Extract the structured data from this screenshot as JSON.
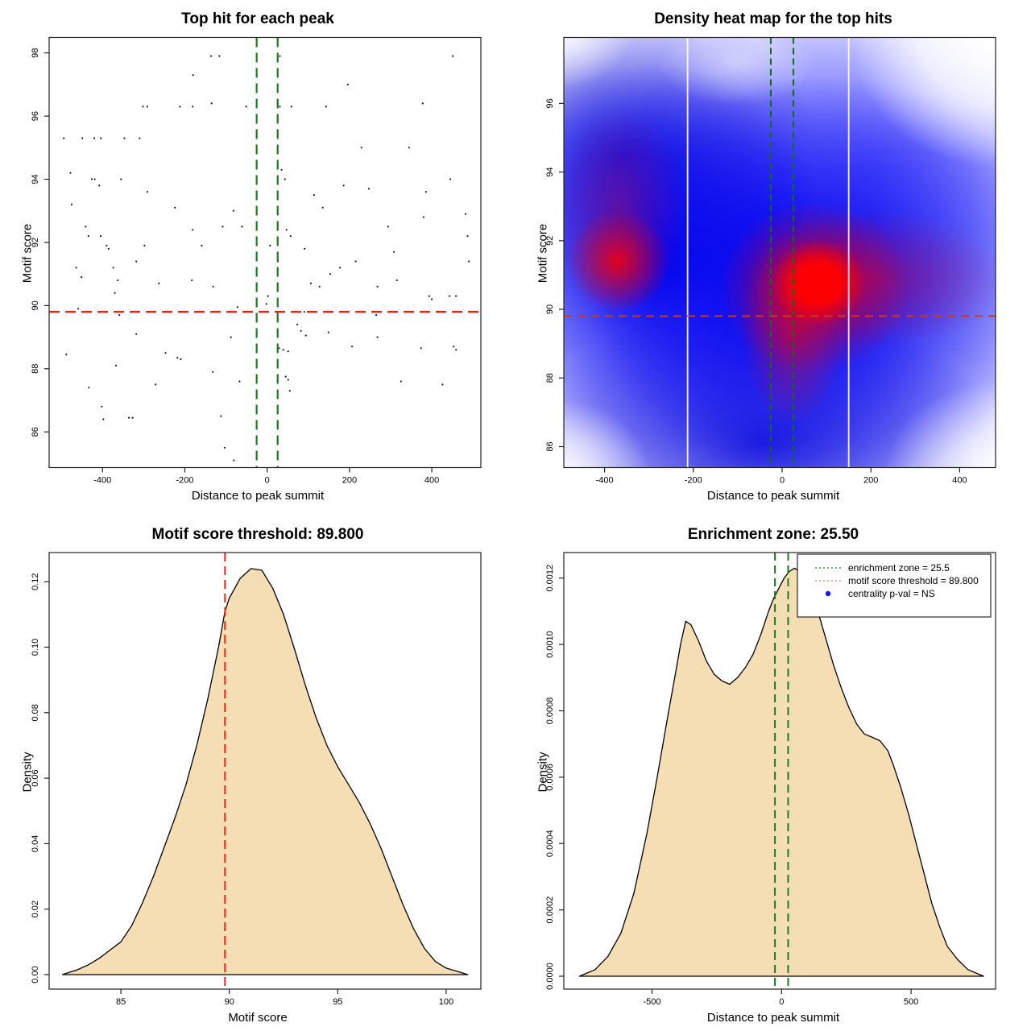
{
  "page": {
    "background": "#ffffff"
  },
  "colors": {
    "threshold_red": "#e8241a",
    "heat_threshold_red": "#cf3518",
    "enrichment_green": "#1b7a1b",
    "heat_green": "#0f6e12",
    "density_fill": "#f5deb3",
    "curve_stroke": "#000000",
    "point_color": "#1a1a1a",
    "heat_low": "#0000ff",
    "heat_high": "#ff0000",
    "white_line": "#ffffff",
    "legend_green": "#3c9b3c",
    "legend_red": "#ff8878",
    "legend_blue": "#1414ff"
  },
  "chart_data": [
    {
      "type": "scatter",
      "panel": "top-left",
      "title": "Top hit for each peak",
      "xlabel": "Distance to peak summit",
      "ylabel": "Motif score",
      "xlim": [
        -529.7,
        519.2
      ],
      "ylim": [
        84.87,
        98.49
      ],
      "xticks": [
        -400,
        -200,
        0,
        200,
        400
      ],
      "xtick_labels": [
        "-400",
        "-200",
        "0",
        "200",
        "400"
      ],
      "yticks": [
        86,
        88,
        90,
        92,
        94,
        96,
        98
      ],
      "ytick_labels": [
        "86",
        "88",
        "90",
        "92",
        "94",
        "96",
        "98"
      ],
      "grid": false,
      "hlines": [
        {
          "name": "motif-score-threshold-line",
          "y": 89.8,
          "color": "#e8241a",
          "dash": "13 7",
          "width": 2.4
        }
      ],
      "vlines": [
        {
          "name": "enrichment-zone-left-line",
          "x": -25.5,
          "color": "#1b7a1b",
          "dash": "12 7",
          "width": 2.2
        },
        {
          "name": "enrichment-zone-right-line",
          "x": 25.5,
          "color": "#1b7a1b",
          "dash": "12 7",
          "width": 2.2
        }
      ],
      "point_color": "#1a1a1a",
      "points": [
        [
          -136,
          97.9
        ],
        [
          -116,
          97.9
        ],
        [
          31,
          97.9
        ],
        [
          451,
          97.9
        ],
        [
          -180,
          97.3
        ],
        [
          196,
          97.0
        ],
        [
          -302,
          96.3
        ],
        [
          -291,
          96.3
        ],
        [
          -212,
          96.3
        ],
        [
          -181,
          96.3
        ],
        [
          -135,
          96.4
        ],
        [
          -51,
          96.3
        ],
        [
          31,
          96.3
        ],
        [
          59,
          96.3
        ],
        [
          143,
          96.3
        ],
        [
          378,
          96.4
        ],
        [
          -494,
          95.3
        ],
        [
          -449,
          95.3
        ],
        [
          -420,
          95.3
        ],
        [
          -404,
          95.3
        ],
        [
          -347,
          95.3
        ],
        [
          -310,
          95.3
        ],
        [
          229,
          95.0
        ],
        [
          345,
          95.0
        ],
        [
          -478,
          94.2
        ],
        [
          35,
          94.3
        ],
        [
          -426,
          94.0
        ],
        [
          -419,
          94.0
        ],
        [
          -355,
          94.0
        ],
        [
          43,
          94.0
        ],
        [
          445,
          94.0
        ],
        [
          -408,
          93.8
        ],
        [
          186,
          93.8
        ],
        [
          247,
          93.7
        ],
        [
          -291,
          93.6
        ],
        [
          114,
          93.5
        ],
        [
          386,
          93.6
        ],
        [
          -475,
          93.2
        ],
        [
          -224,
          93.1
        ],
        [
          135,
          93.1
        ],
        [
          -82,
          93.0
        ],
        [
          482,
          92.9
        ],
        [
          -441,
          92.5
        ],
        [
          -181,
          92.4
        ],
        [
          -108,
          92.5
        ],
        [
          -61,
          92.5
        ],
        [
          47,
          92.4
        ],
        [
          294,
          92.5
        ],
        [
          380,
          92.8
        ],
        [
          -434,
          92.2
        ],
        [
          -404,
          92.2
        ],
        [
          57,
          92.2
        ],
        [
          487,
          92.2
        ],
        [
          -390,
          91.9
        ],
        [
          -385,
          91.8
        ],
        [
          -298,
          91.9
        ],
        [
          -159,
          91.9
        ],
        [
          7,
          91.9
        ],
        [
          91,
          91.8
        ],
        [
          308,
          91.7
        ],
        [
          -318,
          91.4
        ],
        [
          26,
          91.4
        ],
        [
          215,
          91.4
        ],
        [
          490,
          91.4
        ],
        [
          -464,
          91.2
        ],
        [
          -374,
          91.2
        ],
        [
          177,
          91.2
        ],
        [
          -451,
          90.9
        ],
        [
          -363,
          90.8
        ],
        [
          -263,
          90.7
        ],
        [
          -183,
          90.8
        ],
        [
          -131,
          90.6
        ],
        [
          268,
          90.6
        ],
        [
          315,
          90.8
        ],
        [
          106,
          90.7
        ],
        [
          127,
          90.6
        ],
        [
          153,
          91.0
        ],
        [
          -370,
          90.4
        ],
        [
          2,
          90.3
        ],
        [
          394,
          90.3
        ],
        [
          400,
          90.2
        ],
        [
          459,
          90.3
        ],
        [
          443,
          90.3
        ],
        [
          -2,
          90.05
        ],
        [
          -72,
          89.95
        ],
        [
          -459,
          89.9
        ],
        [
          -359,
          89.7
        ],
        [
          90,
          89.8
        ],
        [
          265,
          89.7
        ],
        [
          388,
          89.8
        ],
        [
          -318,
          89.1
        ],
        [
          -88,
          89.0
        ],
        [
          73,
          89.4
        ],
        [
          82,
          89.2
        ],
        [
          94,
          89.05
        ],
        [
          268,
          89.0
        ],
        [
          149,
          89.15
        ],
        [
          -488,
          88.45
        ],
        [
          -247,
          88.5
        ],
        [
          -218,
          88.35
        ],
        [
          -210,
          88.3
        ],
        [
          29,
          88.65
        ],
        [
          39,
          88.6
        ],
        [
          51,
          88.55
        ],
        [
          206,
          88.7
        ],
        [
          374,
          88.65
        ],
        [
          453,
          88.7
        ],
        [
          459,
          88.6
        ],
        [
          -367,
          88.1
        ],
        [
          -132,
          87.9
        ],
        [
          45,
          87.75
        ],
        [
          51,
          87.65
        ],
        [
          -67,
          87.6
        ],
        [
          -271,
          87.5
        ],
        [
          325,
          87.6
        ],
        [
          426,
          87.5
        ],
        [
          -433,
          87.4
        ],
        [
          55,
          87.3
        ],
        [
          -402,
          86.8
        ],
        [
          -398,
          86.4
        ],
        [
          -336,
          86.45
        ],
        [
          -327,
          86.45
        ],
        [
          -112,
          86.5
        ],
        [
          -103,
          85.5
        ],
        [
          -81,
          85.1
        ]
      ]
    },
    {
      "type": "heatmap",
      "panel": "top-right",
      "title": "Density heat map for the top hits",
      "xlabel": "Distance to peak summit",
      "ylabel": "Motif score",
      "xlim": [
        -491.8,
        480.9
      ],
      "ylim": [
        85.39,
        97.92
      ],
      "xticks": [
        -400,
        -200,
        0,
        200,
        400
      ],
      "xtick_labels": [
        "-400",
        "-200",
        "0",
        "200",
        "400"
      ],
      "yticks": [
        86,
        88,
        90,
        92,
        94,
        96
      ],
      "ytick_labels": [
        "86",
        "88",
        "90",
        "92",
        "94",
        "96"
      ],
      "white_vlines": [
        -213,
        150
      ],
      "hlines": [
        {
          "name": "motif-score-threshold-line",
          "y": 89.8,
          "color": "#cf3518",
          "dash": "10 7",
          "width": 2
        }
      ],
      "vlines": [
        {
          "name": "enrichment-zone-left-line",
          "x": -25.5,
          "color": "#0f6e12",
          "dash": "8 5",
          "width": 2
        },
        {
          "name": "enrichment-zone-right-line",
          "x": 25.5,
          "color": "#0f6e12",
          "dash": "8 5",
          "width": 2
        }
      ],
      "hotspots": [
        {
          "x": 65,
          "y": 90.6,
          "intensity": "highest"
        },
        {
          "x": -368,
          "y": 91.3,
          "intensity": "secondary"
        },
        {
          "x": 35,
          "y": 88.4,
          "intensity": "moderate"
        }
      ]
    },
    {
      "type": "density",
      "panel": "bottom-left",
      "title": "Motif score threshold: 89.800",
      "xlabel": "Motif score",
      "ylabel": "Density",
      "xlim": [
        81.69,
        101.6
      ],
      "ylim": [
        -0.00443,
        0.1289
      ],
      "xticks": [
        85,
        90,
        95,
        100
      ],
      "xtick_labels": [
        "85",
        "90",
        "95",
        "100"
      ],
      "yticks": [
        0,
        0.02,
        0.04,
        0.06,
        0.08,
        0.1,
        0.12
      ],
      "ytick_labels": [
        "0.00",
        "0.02",
        "0.04",
        "0.06",
        "0.08",
        "0.10",
        "0.12"
      ],
      "fill": "#f5deb3",
      "stroke": "#000000",
      "vlines": [
        {
          "name": "motif-score-threshold-line",
          "x": 89.8,
          "color": "#e8241a",
          "dash": "11 6",
          "width": 2
        }
      ],
      "curve": [
        [
          82.3,
          0
        ],
        [
          83,
          0.0015
        ],
        [
          83.5,
          0.003
        ],
        [
          84,
          0.005
        ],
        [
          84.5,
          0.0075
        ],
        [
          85,
          0.01
        ],
        [
          85.5,
          0.015
        ],
        [
          86,
          0.022
        ],
        [
          86.5,
          0.03
        ],
        [
          87,
          0.039
        ],
        [
          87.5,
          0.048
        ],
        [
          88,
          0.058
        ],
        [
          88.5,
          0.07
        ],
        [
          89,
          0.084
        ],
        [
          89.5,
          0.1
        ],
        [
          89.8,
          0.111
        ],
        [
          90,
          0.115
        ],
        [
          90.5,
          0.121
        ],
        [
          91,
          0.124
        ],
        [
          91.5,
          0.1235
        ],
        [
          92,
          0.118
        ],
        [
          92.5,
          0.11
        ],
        [
          93,
          0.0995
        ],
        [
          93.5,
          0.0885
        ],
        [
          94,
          0.0785
        ],
        [
          94.5,
          0.07
        ],
        [
          95,
          0.0635
        ],
        [
          95.5,
          0.058
        ],
        [
          96,
          0.0525
        ],
        [
          96.5,
          0.046
        ],
        [
          97,
          0.0385
        ],
        [
          97.5,
          0.03
        ],
        [
          98,
          0.0215
        ],
        [
          98.5,
          0.014
        ],
        [
          99,
          0.008
        ],
        [
          99.5,
          0.004
        ],
        [
          100,
          0.002
        ],
        [
          100.5,
          0.001
        ],
        [
          101,
          0
        ]
      ]
    },
    {
      "type": "density",
      "panel": "bottom-right",
      "title": "Enrichment zone: 25.50",
      "xlabel": "Distance to peak summit",
      "ylabel": "Density",
      "xlim": [
        -840.5,
        826.2
      ],
      "ylim": [
        -3.88e-05,
        0.001277
      ],
      "xticks": [
        -500,
        0,
        500
      ],
      "xtick_labels": [
        "-500",
        "0",
        "500"
      ],
      "yticks": [
        0,
        0.0002,
        0.0004,
        0.0006,
        0.0008,
        0.001,
        0.0012
      ],
      "ytick_labels": [
        "0.0000",
        "0.0002",
        "0.0004",
        "0.0006",
        "0.0008",
        "0.0010",
        "0.0012"
      ],
      "fill": "#f5deb3",
      "stroke": "#000000",
      "vlines": [
        {
          "name": "enrichment-zone-left-line",
          "x": -25.5,
          "color": "#1b7a1b",
          "dash": "10 6",
          "width": 2
        },
        {
          "name": "enrichment-zone-right-line",
          "x": 25.5,
          "color": "#1b7a1b",
          "dash": "10 6",
          "width": 2
        }
      ],
      "curve": [
        [
          -780,
          0
        ],
        [
          -720,
          2e-05
        ],
        [
          -670,
          6e-05
        ],
        [
          -620,
          0.00013
        ],
        [
          -570,
          0.00025
        ],
        [
          -520,
          0.00043
        ],
        [
          -480,
          0.0006
        ],
        [
          -440,
          0.00078
        ],
        [
          -410,
          0.00091
        ],
        [
          -390,
          0.001
        ],
        [
          -370,
          0.00107
        ],
        [
          -350,
          0.00106
        ],
        [
          -320,
          0.00101
        ],
        [
          -290,
          0.00095
        ],
        [
          -260,
          0.00091
        ],
        [
          -230,
          0.00089
        ],
        [
          -200,
          0.00088
        ],
        [
          -170,
          0.0009
        ],
        [
          -140,
          0.00093
        ],
        [
          -110,
          0.00097
        ],
        [
          -80,
          0.00103
        ],
        [
          -50,
          0.0011
        ],
        [
          -30,
          0.00114
        ],
        [
          -10,
          0.00117
        ],
        [
          10,
          0.0012
        ],
        [
          30,
          0.00122
        ],
        [
          50,
          0.00123
        ],
        [
          70,
          0.00122
        ],
        [
          90,
          0.0012
        ],
        [
          110,
          0.00117
        ],
        [
          140,
          0.0011
        ],
        [
          170,
          0.00102
        ],
        [
          200,
          0.00094
        ],
        [
          230,
          0.00087
        ],
        [
          260,
          0.00081
        ],
        [
          290,
          0.00076
        ],
        [
          320,
          0.00073
        ],
        [
          350,
          0.00072
        ],
        [
          380,
          0.00071
        ],
        [
          410,
          0.00068
        ],
        [
          430,
          0.00064
        ],
        [
          460,
          0.00057
        ],
        [
          490,
          0.00049
        ],
        [
          520,
          0.0004
        ],
        [
          550,
          0.00031
        ],
        [
          580,
          0.00022
        ],
        [
          610,
          0.00015
        ],
        [
          640,
          9e-05
        ],
        [
          680,
          5e-05
        ],
        [
          720,
          2e-05
        ],
        [
          780,
          0
        ]
      ],
      "legend": {
        "border": "#000000",
        "items": [
          {
            "swatch": "dotted-line",
            "color": "#3c9b3c",
            "label": "enrichment zone = 25.5"
          },
          {
            "swatch": "dotted-line",
            "color": "#ff8878",
            "label": "motif score threshold = 89.800"
          },
          {
            "swatch": "dot",
            "color": "#1414ff",
            "label": "centrality p-val = NS"
          }
        ]
      }
    }
  ]
}
